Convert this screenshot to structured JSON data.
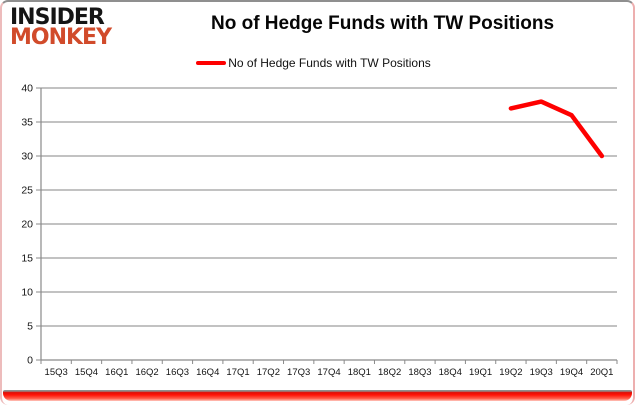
{
  "brand": {
    "line1": "INSIDER",
    "line2": "MONKEY"
  },
  "header": {
    "title": "No of Hedge Funds with TW Positions"
  },
  "legend": {
    "label": "No of Hedge Funds with TW Positions"
  },
  "chart_data": {
    "type": "line",
    "title": "No of Hedge Funds with TW Positions",
    "categories": [
      "15Q3",
      "15Q4",
      "16Q1",
      "16Q2",
      "16Q3",
      "16Q4",
      "17Q1",
      "17Q2",
      "17Q3",
      "17Q4",
      "18Q1",
      "18Q2",
      "18Q3",
      "18Q4",
      "19Q1",
      "19Q2",
      "19Q3",
      "19Q4",
      "20Q1"
    ],
    "series": [
      {
        "name": "No of Hedge Funds with TW Positions",
        "color": "#fe0000",
        "values": [
          null,
          null,
          null,
          null,
          null,
          null,
          null,
          null,
          null,
          null,
          null,
          null,
          null,
          null,
          null,
          37,
          38,
          36,
          30
        ]
      }
    ],
    "xlabel": "",
    "ylabel": "",
    "ylim": [
      0,
      40
    ],
    "ytick_step": 5,
    "grid": "horizontal",
    "legend_position": "top"
  },
  "colors": {
    "series_red": "#fe0000",
    "grid": "#9e9e9e",
    "axis": "#8a8a8a",
    "logo_red": "#d14b2b",
    "frame_top_gray": "#8f8f8f",
    "frame_side_pink": "#edbcbc",
    "frame_bottom_red": "#ff1408",
    "text": "#141414"
  }
}
